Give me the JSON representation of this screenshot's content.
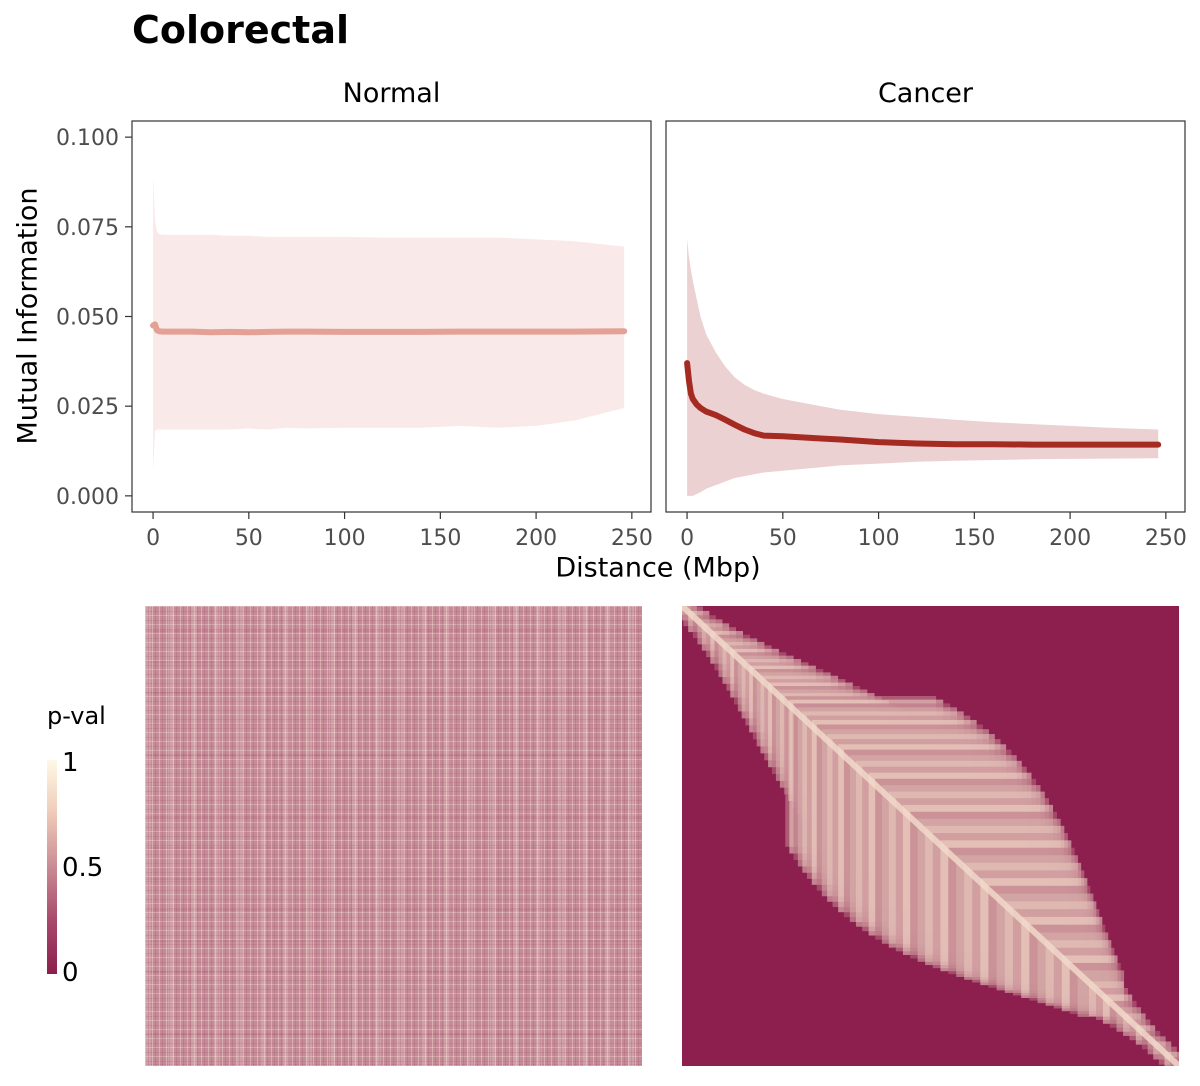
{
  "title": "Colorectal",
  "legend": {
    "title": "p-val",
    "ticks": [
      "1",
      "0.5",
      "0"
    ]
  },
  "colors": {
    "normal_line": "#e3a095",
    "normal_ribbon": "#f9e9e8",
    "cancer_line": "#a52a22",
    "cancer_ribbon": "#ecd1d2",
    "heatmap_low": "#8c1f4e",
    "heatmap_high": "#fff8e6"
  },
  "chart_data": [
    {
      "type": "line",
      "panel": "Normal",
      "xlabel": "Distance (Mbp)",
      "ylabel": "Mutual Information",
      "xlim": [
        -11,
        260
      ],
      "ylim": [
        -0.0045,
        0.1045
      ],
      "xticks": [
        "0",
        "50",
        "100",
        "150",
        "200",
        "250"
      ],
      "yticks": [
        "0.000",
        "0.025",
        "0.050",
        "0.075",
        "0.100"
      ],
      "x": [
        0,
        1,
        2,
        3,
        5,
        10,
        20,
        30,
        40,
        50,
        60,
        70,
        80,
        100,
        120,
        140,
        160,
        180,
        200,
        220,
        246
      ],
      "mean": [
        0.0475,
        0.0478,
        0.0462,
        0.0459,
        0.0458,
        0.0458,
        0.0458,
        0.0456,
        0.0457,
        0.0456,
        0.0457,
        0.0458,
        0.0458,
        0.0457,
        0.0457,
        0.0457,
        0.0458,
        0.0458,
        0.0458,
        0.0458,
        0.0459
      ],
      "lower": [
        0.0065,
        0.018,
        0.0185,
        0.0185,
        0.0185,
        0.0185,
        0.0185,
        0.0185,
        0.0185,
        0.0188,
        0.0185,
        0.019,
        0.0188,
        0.019,
        0.019,
        0.019,
        0.0195,
        0.019,
        0.0195,
        0.021,
        0.0245
      ],
      "upper": [
        0.0895,
        0.0765,
        0.0738,
        0.073,
        0.0728,
        0.0728,
        0.0728,
        0.0728,
        0.0725,
        0.0725,
        0.0722,
        0.0722,
        0.0722,
        0.0722,
        0.072,
        0.072,
        0.072,
        0.072,
        0.0715,
        0.071,
        0.0695
      ]
    },
    {
      "type": "line",
      "panel": "Cancer",
      "xlabel": "Distance (Mbp)",
      "ylabel": "Mutual Information",
      "xlim": [
        -11,
        260
      ],
      "ylim": [
        -0.0045,
        0.1045
      ],
      "xticks": [
        "0",
        "50",
        "100",
        "150",
        "200",
        "250"
      ],
      "yticks": [
        "0.000",
        "0.025",
        "0.050",
        "0.075",
        "0.100"
      ],
      "x": [
        0,
        1,
        2,
        3,
        5,
        7,
        10,
        15,
        20,
        25,
        30,
        35,
        40,
        50,
        60,
        70,
        80,
        100,
        120,
        140,
        160,
        180,
        200,
        220,
        246
      ],
      "mean": [
        0.037,
        0.032,
        0.0285,
        0.027,
        0.0255,
        0.0245,
        0.0235,
        0.0225,
        0.0212,
        0.0198,
        0.0185,
        0.0175,
        0.0168,
        0.0166,
        0.0163,
        0.016,
        0.0157,
        0.015,
        0.0146,
        0.0144,
        0.0144,
        0.0143,
        0.0143,
        0.0143,
        0.0143
      ],
      "lower": [
        0.0,
        0.0,
        0.0,
        0.0,
        0.0005,
        0.001,
        0.002,
        0.003,
        0.004,
        0.005,
        0.0055,
        0.006,
        0.0065,
        0.007,
        0.0075,
        0.008,
        0.0085,
        0.009,
        0.0095,
        0.0098,
        0.01,
        0.0102,
        0.0103,
        0.0104,
        0.0105
      ],
      "upper": [
        0.0715,
        0.0665,
        0.063,
        0.06,
        0.055,
        0.05,
        0.045,
        0.04,
        0.036,
        0.033,
        0.031,
        0.0295,
        0.0285,
        0.027,
        0.026,
        0.025,
        0.024,
        0.0228,
        0.022,
        0.0212,
        0.0205,
        0.02,
        0.0195,
        0.019,
        0.0185
      ]
    },
    {
      "type": "heatmap",
      "panel": "Normal",
      "scale": {
        "title": "p-val",
        "min": 0,
        "max": 1
      }
    },
    {
      "type": "heatmap",
      "panel": "Cancer",
      "scale": {
        "title": "p-val",
        "min": 0,
        "max": 1
      }
    }
  ]
}
